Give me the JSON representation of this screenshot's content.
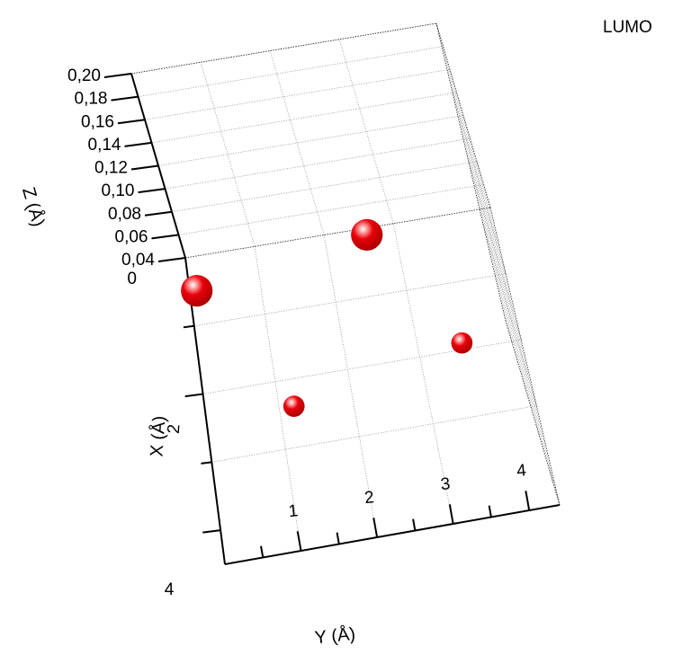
{
  "title": "LUMO",
  "chart_data": {
    "type": "scatter",
    "projection": "3d",
    "title": "LUMO",
    "xlabel": "X (Å)",
    "ylabel": "Y (Å)",
    "zlabel": "Z (Å)",
    "x_tick_labels": [
      "2",
      "4"
    ],
    "y_tick_labels": [
      "1",
      "2",
      "3",
      "4"
    ],
    "z_tick_labels": [
      "0",
      "0,04",
      "0,06",
      "0,08",
      "0,10",
      "0,12",
      "0,14",
      "0,16",
      "0,18",
      "0,20"
    ],
    "grid": true,
    "marker_color": "#e8000b",
    "points": [
      {
        "x": 0.5,
        "y": 0.1,
        "size": 0.2
      },
      {
        "x": 0.1,
        "y": 2.6,
        "size": 0.2
      },
      {
        "x": 2.4,
        "y": 1.2,
        "size": 0.08
      },
      {
        "x": 1.9,
        "y": 3.6,
        "size": 0.08
      }
    ]
  }
}
